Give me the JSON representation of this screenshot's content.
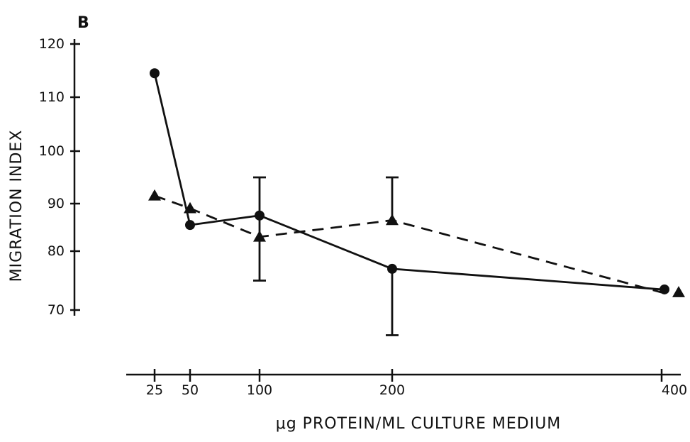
{
  "chart_data": {
    "type": "line",
    "panel_label": "B",
    "xlabel": "μg PROTEIN/ML CULTURE MEDIUM",
    "ylabel": "MIGRATION INDEX",
    "x_ticks": [
      25,
      50,
      100,
      200,
      400
    ],
    "x_tick_labels": [
      "25",
      "50",
      "100",
      "200",
      "400"
    ],
    "y_ticks": [
      70,
      80,
      90,
      100,
      110,
      120
    ],
    "y_tick_labels": [
      "70",
      "80",
      "90",
      "100",
      "110",
      "120"
    ],
    "ylim": [
      60,
      120
    ],
    "series": [
      {
        "marker": "circle",
        "line_style": "solid",
        "points": [
          {
            "x": 25,
            "y": 114.5
          },
          {
            "x": 50,
            "y": 85.5
          },
          {
            "x": 100,
            "y": 87.5,
            "err_low": 75,
            "err_high": 95
          },
          {
            "x": 200,
            "y": 77,
            "err_low": 65,
            "err_high": null
          },
          {
            "x": 400,
            "y": 73.5
          }
        ]
      },
      {
        "marker": "triangle",
        "line_style": "dashed",
        "points": [
          {
            "x": 25,
            "y": 91.5
          },
          {
            "x": 50,
            "y": 89
          },
          {
            "x": 100,
            "y": 83
          },
          {
            "x": 200,
            "y": 86.5,
            "err_low": null,
            "err_high": 95
          },
          {
            "x": 400,
            "y": 73
          }
        ]
      }
    ],
    "colors": {
      "ink": "#111111",
      "background": "#ffffff"
    }
  }
}
